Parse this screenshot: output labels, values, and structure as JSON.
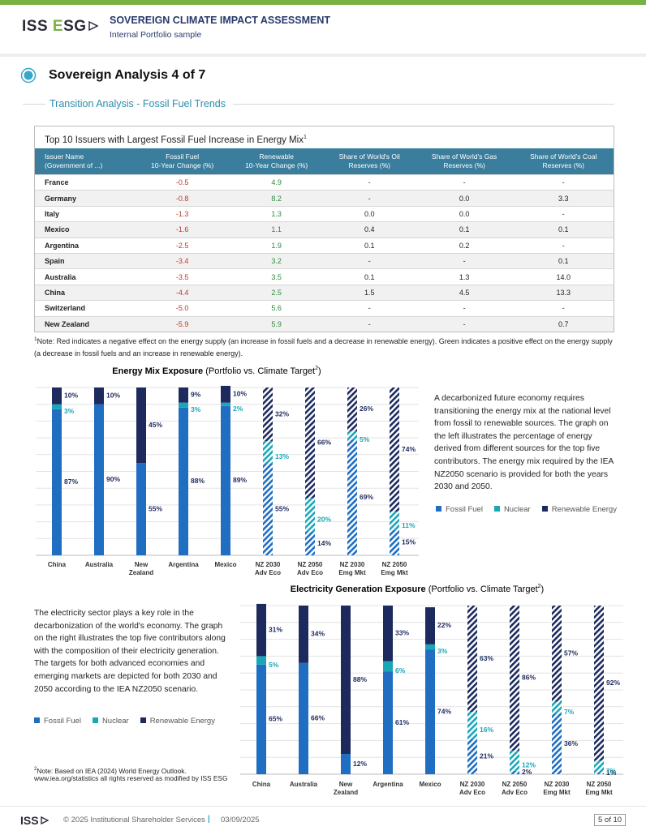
{
  "header": {
    "logo": [
      "ISS ",
      "E",
      "SG"
    ],
    "title": "SOVEREIGN CLIMATE IMPACT ASSESSMENT",
    "subtitle": "Internal Portfolio sample"
  },
  "section": {
    "title": "Sovereign Analysis 4 of 7",
    "subtitle": "Transition Analysis - Fossil Fuel Trends"
  },
  "table": {
    "title": "Top 10 Issuers with Largest Fossil Fuel Increase in Energy Mix",
    "title_sup": "1",
    "columns": [
      [
        "Issuer Name",
        "(Government of ...)"
      ],
      [
        "Fossil Fuel",
        "10-Year Change (%)"
      ],
      [
        "Renewable",
        "10-Year Change (%)"
      ],
      [
        "Share of World's Oil",
        "Reserves (%)"
      ],
      [
        "Share of World's Gas",
        "Reserves (%)"
      ],
      [
        "Share of World's Coal",
        "Reserves (%)"
      ]
    ],
    "rows": [
      [
        "France",
        "-0.5",
        "4.9",
        "-",
        "-",
        "-"
      ],
      [
        "Germany",
        "-0.8",
        "8.2",
        "-",
        "0.0",
        "3.3"
      ],
      [
        "Italy",
        "-1.3",
        "1.3",
        "0.0",
        "0.0",
        "-"
      ],
      [
        "Mexico",
        "-1.6",
        "1.1",
        "0.4",
        "0.1",
        "0.1"
      ],
      [
        "Argentina",
        "-2.5",
        "1.9",
        "0.1",
        "0.2",
        "-"
      ],
      [
        "Spain",
        "-3.4",
        "3.2",
        "-",
        "-",
        "0.1"
      ],
      [
        "Australia",
        "-3.5",
        "3.5",
        "0.1",
        "1.3",
        "14.0"
      ],
      [
        "China",
        "-4.4",
        "2.5",
        "1.5",
        "4.5",
        "13.3"
      ],
      [
        "Switzerland",
        "-5.0",
        "5.6",
        "-",
        "-",
        "-"
      ],
      [
        "New Zealand",
        "-5.9",
        "5.9",
        "-",
        "-",
        "0.7"
      ]
    ]
  },
  "note1": {
    "sup": "1",
    "text": "Note: Red indicates a negative effect on the energy supply (an increase in fossil fuels and a decrease in renewable energy). Green indicates a positive effect on the energy supply (a decrease in fossil fuels and an increase in renewable energy)."
  },
  "chart_data": [
    {
      "type": "stacked_bar",
      "title": "Energy Mix Exposure",
      "subtitle": " (Portfolio vs. Climate Target",
      "subtitle_sup": "2",
      "subtitle_end": ")",
      "categories": [
        [
          "China"
        ],
        [
          "Australia"
        ],
        [
          "New",
          "Zealand"
        ],
        [
          "Argentina"
        ],
        [
          "Mexico"
        ],
        [
          "NZ 2030",
          "Adv Eco"
        ],
        [
          "NZ 2050",
          "Adv Eco"
        ],
        [
          "NZ 2030",
          "Emg Mkt"
        ],
        [
          "NZ 2050",
          "Emg Mkt"
        ]
      ],
      "hatched": [
        false,
        false,
        false,
        false,
        false,
        true,
        true,
        true,
        true
      ],
      "ylim": [
        0,
        100
      ],
      "yticks": [
        0,
        10,
        20,
        30,
        40,
        50,
        60,
        70,
        80,
        90,
        100
      ],
      "grid": true,
      "series": [
        {
          "name": "Fossil Fuel",
          "color": "#1f6ec2",
          "label_color": "#1d2a5e",
          "values": [
            87,
            90,
            55,
            88,
            89,
            55,
            14,
            69,
            15
          ],
          "value_labels": [
            "87%",
            "90%",
            "55%",
            "88%",
            "89%",
            "55%",
            "14%",
            "69%",
            "15%"
          ]
        },
        {
          "name": "Nuclear",
          "color": "#19a7b8",
          "label_color": "#19a7b8",
          "values": [
            3,
            0,
            0,
            3,
            2,
            13,
            20,
            5,
            11
          ],
          "value_labels": [
            "3%",
            null,
            null,
            "3%",
            "2%",
            "13%",
            "20%",
            "5%",
            "11%"
          ]
        },
        {
          "name": "Renewable Energy",
          "color": "#1d2a5e",
          "label_color": "#1d2a5e",
          "values": [
            10,
            10,
            45,
            9,
            10,
            32,
            66,
            26,
            74
          ],
          "value_labels": [
            "10%",
            "10%",
            "45%",
            "9%",
            "10%",
            "32%",
            "66%",
            "26%",
            "74%"
          ]
        }
      ],
      "paragraph": "A decarbonized future economy requires transitioning the energy mix at the national level from fossil to renewable sources. The graph on the left illustrates the percentage of energy derived from different sources for the top five contributors. The energy mix required by the IEA NZ2050 scenario is provided for both the years 2030 and 2050."
    },
    {
      "type": "stacked_bar",
      "title": "Electricity Generation Exposure",
      "subtitle": " (Portfolio vs. Climate Target",
      "subtitle_sup": "2",
      "subtitle_end": ")",
      "categories": [
        [
          "China"
        ],
        [
          "Australia"
        ],
        [
          "New",
          "Zealand"
        ],
        [
          "Argentina"
        ],
        [
          "Mexico"
        ],
        [
          "NZ 2030",
          "Adv Eco"
        ],
        [
          "NZ 2050",
          "Adv Eco"
        ],
        [
          "NZ 2030",
          "Emg Mkt"
        ],
        [
          "NZ 2050",
          "Emg Mkt"
        ]
      ],
      "hatched": [
        false,
        false,
        false,
        false,
        false,
        true,
        true,
        true,
        true
      ],
      "ylim": [
        0,
        100
      ],
      "yticks": [
        0,
        10,
        20,
        30,
        40,
        50,
        60,
        70,
        80,
        90,
        100
      ],
      "grid": true,
      "series": [
        {
          "name": "Fossil Fuel",
          "color": "#1f6ec2",
          "label_color": "#1d2a5e",
          "values": [
            65,
            66,
            12,
            61,
            74,
            21,
            2,
            36,
            1
          ],
          "value_labels": [
            "65%",
            "66%",
            "12%",
            "61%",
            "74%",
            "21%",
            "2%",
            "36%",
            "1%"
          ]
        },
        {
          "name": "Nuclear",
          "color": "#19a7b8",
          "label_color": "#19a7b8",
          "values": [
            5,
            0,
            0,
            6,
            3,
            16,
            12,
            7,
            7
          ],
          "value_labels": [
            "5%",
            null,
            null,
            "6%",
            "3%",
            "16%",
            "12%",
            "7%",
            "7%"
          ]
        },
        {
          "name": "Renewable Energy",
          "color": "#1d2a5e",
          "label_color": "#1d2a5e",
          "values": [
            31,
            34,
            88,
            33,
            22,
            63,
            86,
            57,
            92
          ],
          "value_labels": [
            "31%",
            "34%",
            "88%",
            "33%",
            "22%",
            "63%",
            "86%",
            "57%",
            "92%"
          ]
        }
      ],
      "paragraph": "The electricity sector plays a key role in the decarbonization of the world's economy. The graph on the right illustrates the top five contributors along with the composition of their electricity generation. The targets for both advanced economies and emerging markets are depicted for both 2030 and 2050 according to the IEA NZ2050 scenario.",
      "note_sup": "2",
      "note": "Note: Based on IEA (2024) World Energy Outlook. www.iea.org/statistics all rights reserved as modified by ISS ESG"
    }
  ],
  "footer": {
    "logo": "ISS",
    "copyright": "© 2025 Institutional Shareholder Services",
    "separator": "|",
    "date": "03/09/2025",
    "page": "5 of 10"
  }
}
